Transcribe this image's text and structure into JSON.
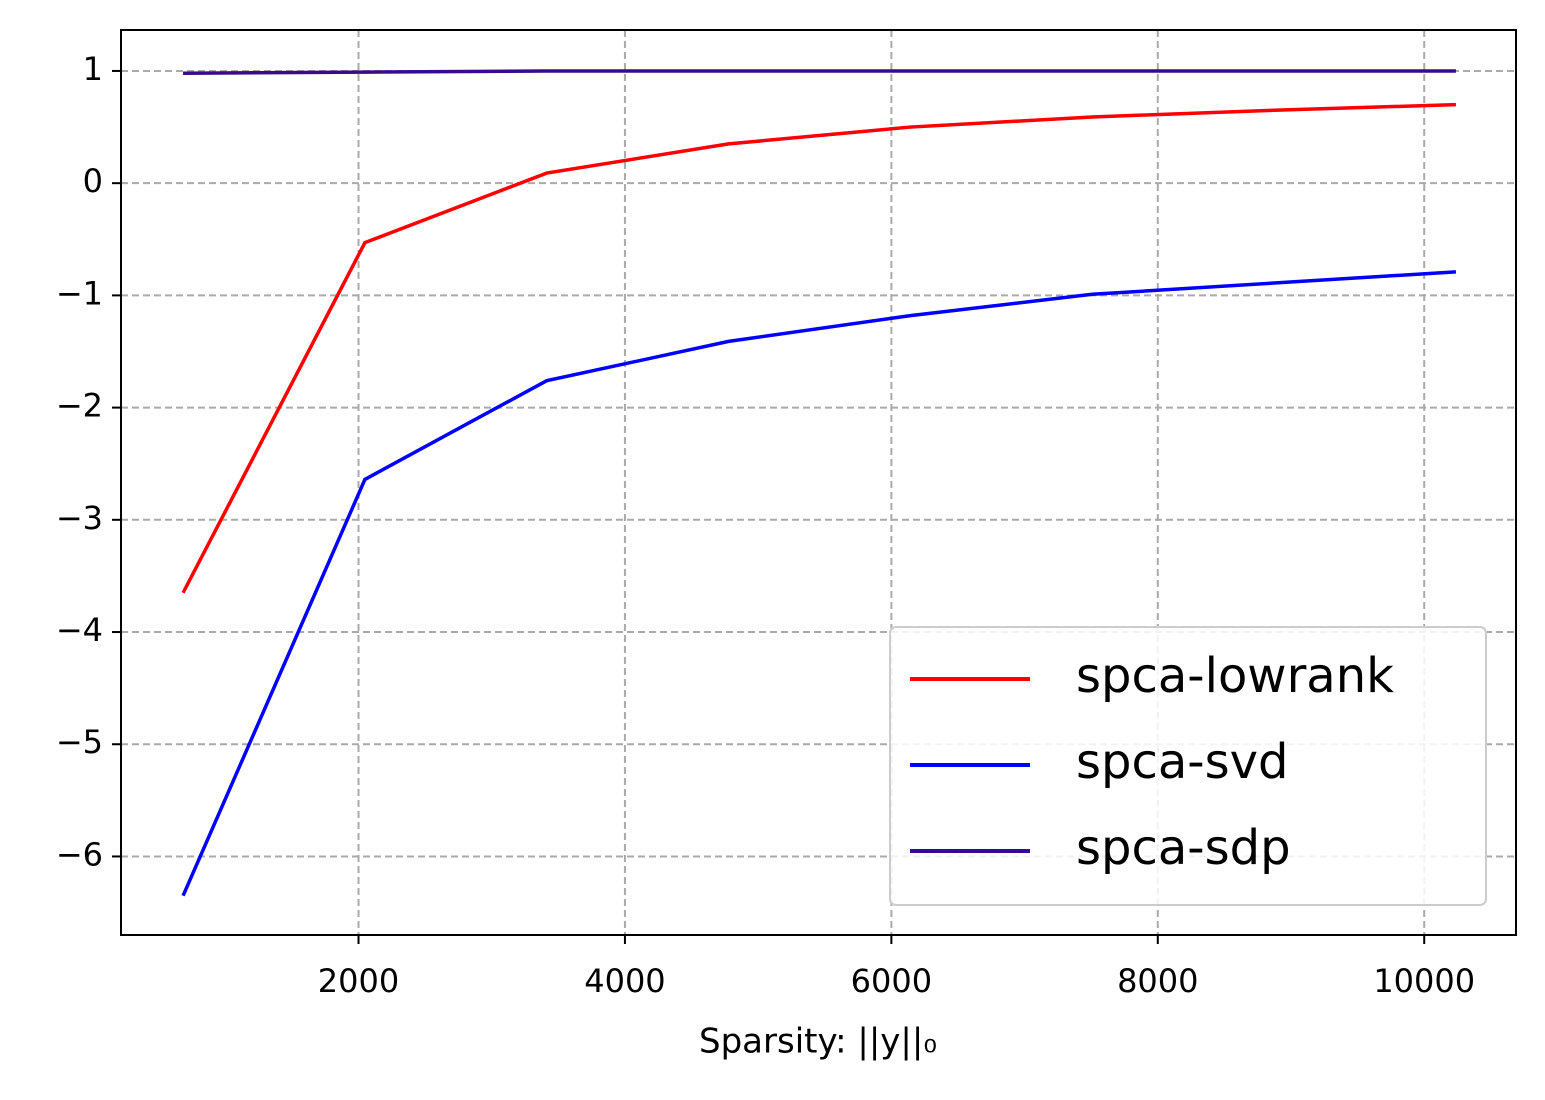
{
  "chart_data": {
    "type": "line",
    "x_label": "Sparsity: ||y||₀",
    "x": [
      683,
      2048,
      3413,
      4778,
      6143,
      7508,
      8873,
      10238
    ],
    "series": [
      {
        "name": "spca-lowrank",
        "color": "#ff0000",
        "values": [
          -3.65,
          -0.53,
          0.09,
          0.35,
          0.5,
          0.59,
          0.65,
          0.7
        ]
      },
      {
        "name": "spca-svd",
        "color": "#0000ff",
        "values": [
          -6.35,
          -2.64,
          -1.76,
          -1.41,
          -1.18,
          -0.99,
          -0.89,
          -0.79
        ]
      },
      {
        "name": "spca-sdp",
        "color": "#3a0a8c",
        "values": [
          0.98,
          0.99,
          1.0,
          1.0,
          1.0,
          1.0,
          1.0,
          1.0
        ]
      }
    ],
    "xlim": [
      217,
      10689
    ],
    "xticks": [
      2000,
      4000,
      6000,
      8000,
      10000
    ],
    "ylim": [
      -6.7,
      1.365
    ],
    "yticks": [
      {
        "value": -6,
        "label": "−6"
      },
      {
        "value": -5,
        "label": "−5"
      },
      {
        "value": -4,
        "label": "−4"
      },
      {
        "value": -3,
        "label": "−3"
      },
      {
        "value": -2,
        "label": "−2"
      },
      {
        "value": -1,
        "label": "−1"
      },
      0,
      1
    ],
    "grid": true,
    "legend_position": "lower right"
  }
}
